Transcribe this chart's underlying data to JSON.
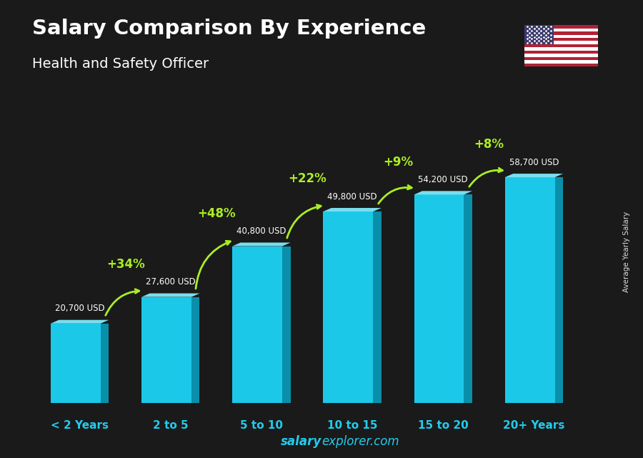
{
  "title": "Salary Comparison By Experience",
  "subtitle": "Health and Safety Officer",
  "categories": [
    "< 2 Years",
    "2 to 5",
    "5 to 10",
    "10 to 15",
    "15 to 20",
    "20+ Years"
  ],
  "values": [
    20700,
    27600,
    40800,
    49800,
    54200,
    58700
  ],
  "salary_labels": [
    "20,700 USD",
    "27,600 USD",
    "40,800 USD",
    "49,800 USD",
    "54,200 USD",
    "58,700 USD"
  ],
  "pct_labels": [
    "+34%",
    "+48%",
    "+22%",
    "+9%",
    "+8%"
  ],
  "bar_color_face": "#1BC8E8",
  "bar_color_dark": "#0A8FAA",
  "bar_color_top": "#7ADEEE",
  "title_color": "#FFFFFF",
  "subtitle_color": "#FFFFFF",
  "pct_color": "#AAEE22",
  "xlabel_color": "#22CCEE",
  "footer_bold": "salary",
  "footer_normal": "explorer.com",
  "footer_color": "#22CCEE",
  "side_label": "Average Yearly Salary",
  "background_color": "#1a1a1a",
  "flag_stripes": [
    "#B22234",
    "#FFFFFF",
    "#B22234",
    "#FFFFFF",
    "#B22234",
    "#FFFFFF",
    "#B22234",
    "#FFFFFF",
    "#B22234",
    "#FFFFFF",
    "#B22234",
    "#FFFFFF",
    "#B22234"
  ],
  "flag_canton": "#3C3B6E"
}
